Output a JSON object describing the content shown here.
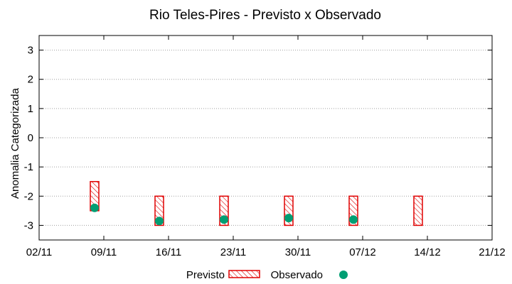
{
  "chart_data": {
    "type": "range-bar-scatter",
    "title": "Rio Teles-Pires - Previsto x Observado",
    "ylabel": "Anomalia Categorizada",
    "xlabel": "",
    "ylim": [
      -3.5,
      3.5
    ],
    "yticks": [
      -3,
      -2,
      -1,
      0,
      1,
      2,
      3
    ],
    "xlim": [
      "2023-11-02",
      "2023-12-21"
    ],
    "xticks": [
      "02/11",
      "09/11",
      "16/11",
      "23/11",
      "30/11",
      "07/12",
      "14/12",
      "21/12"
    ],
    "grid": "y-dotted",
    "legend_position": "bottom-center",
    "colors": {
      "previsto": "#e00000",
      "observado": "#009e73"
    },
    "series": [
      {
        "name": "Previsto",
        "style": "hatched-box",
        "points": [
          {
            "date": "2023-11-08",
            "low": -2.5,
            "high": -1.5
          },
          {
            "date": "2023-11-15",
            "low": -3.0,
            "high": -2.0
          },
          {
            "date": "2023-11-22",
            "low": -3.0,
            "high": -2.0
          },
          {
            "date": "2023-11-29",
            "low": -3.0,
            "high": -2.0
          },
          {
            "date": "2023-12-06",
            "low": -3.0,
            "high": -2.0
          },
          {
            "date": "2023-12-13",
            "low": -3.0,
            "high": -2.0
          }
        ]
      },
      {
        "name": "Observado",
        "style": "circle",
        "points": [
          {
            "date": "2023-11-08",
            "value": -2.4
          },
          {
            "date": "2023-11-15",
            "value": -2.85
          },
          {
            "date": "2023-11-22",
            "value": -2.8
          },
          {
            "date": "2023-11-29",
            "value": -2.75
          },
          {
            "date": "2023-12-06",
            "value": -2.8
          }
        ]
      }
    ]
  }
}
